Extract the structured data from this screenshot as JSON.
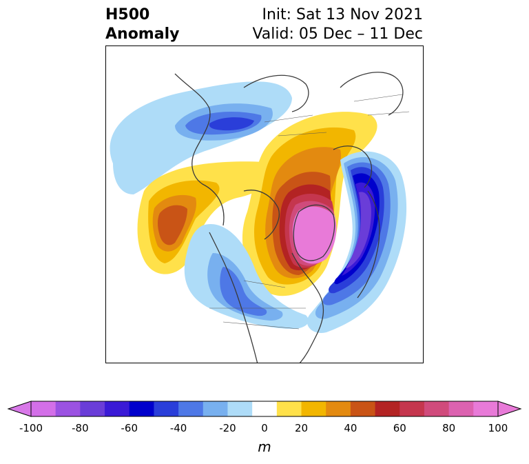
{
  "title": {
    "left_line1": "H500",
    "left_line2": "Anomaly",
    "right_line1": "Init: Sat 13 Nov 2021",
    "right_line2": "Valid: 05 Dec – 11 Dec"
  },
  "colorbar": {
    "unit": "m",
    "ticks": [
      "-100",
      "-80",
      "-60",
      "-40",
      "-20",
      "0",
      "20",
      "40",
      "60",
      "80",
      "100"
    ],
    "levels": [
      -100,
      -90,
      -80,
      -70,
      -60,
      -50,
      -40,
      -30,
      -20,
      -10,
      10,
      20,
      30,
      40,
      50,
      60,
      70,
      80,
      90,
      100
    ],
    "colors": [
      "#d36fe8",
      "#9b52e2",
      "#6a3dd8",
      "#3a1ad6",
      "#0000cc",
      "#2a3ed9",
      "#4e78e6",
      "#78b0ef",
      "#aedcf8",
      "#ffffff",
      "#ffe14a",
      "#f2b600",
      "#e38a10",
      "#c95416",
      "#b32323",
      "#c5364e",
      "#d04b7c",
      "#dc62b0",
      "#e87ad8"
    ],
    "under_color": "#d878e8",
    "over_color": "#e87ad8"
  }
}
